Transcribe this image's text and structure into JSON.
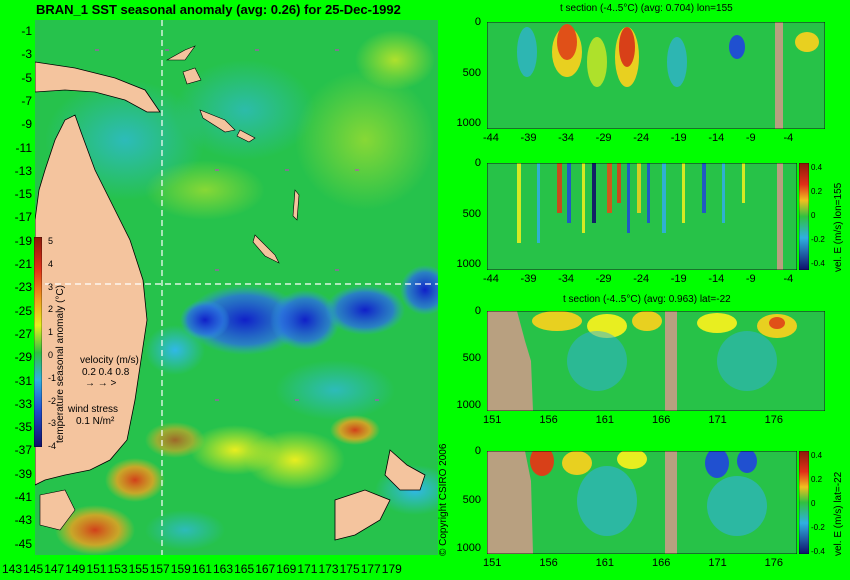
{
  "main_title": "BRAN_1 SST seasonal anomaly (avg: 0.26) for 25-Dec-1992",
  "map": {
    "lat_ticks": [
      "-1",
      "-3",
      "-5",
      "-7",
      "-9",
      "-11",
      "-13",
      "-15",
      "-17",
      "-19",
      "-21",
      "-23",
      "-25",
      "-27",
      "-29",
      "-31",
      "-33",
      "-35",
      "-37",
      "-39",
      "-41",
      "-43",
      "-45"
    ],
    "lon_ticks": [
      "143",
      "145",
      "147",
      "149",
      "151",
      "153",
      "155",
      "157",
      "159",
      "161",
      "163",
      "165",
      "167",
      "169",
      "171",
      "173",
      "175",
      "177",
      "179"
    ],
    "colorbar_ticks": [
      "5",
      "4",
      "3",
      "2",
      "1",
      "0",
      "-1",
      "-2",
      "-3",
      "-4"
    ],
    "colorbar_label": "temperature seasonal anomaly (°C)",
    "velocity_legend_title": "velocity (m/s)",
    "velocity_legend_values": "0.2 0.4 0.8",
    "wind_legend_title": "wind stress",
    "wind_legend_value": "0.1 N/m²",
    "copyright": "© Copyright CSIRO 2006",
    "colors": {
      "land": "#f4c49e",
      "ocean_base": "#22c84a",
      "crosshair": "#ffffff"
    }
  },
  "panels": [
    {
      "title": "t section (-4..5°C) (avg: 0.704) lon=155",
      "x_ticks": [
        "-44",
        "-39",
        "-34",
        "-29",
        "-24",
        "-19",
        "-14",
        "-9",
        "-4"
      ],
      "y_ticks": [
        "0",
        "500",
        "1000"
      ]
    },
    {
      "title": "",
      "x_ticks": [
        "-44",
        "-39",
        "-34",
        "-29",
        "-24",
        "-19",
        "-14",
        "-9",
        "-4"
      ],
      "y_ticks": [
        "0",
        "500",
        "1000"
      ],
      "side_label": "vel. E (m/s) lon=155",
      "cbar_ticks": [
        "0.4",
        "0.2",
        "0",
        "-0.2",
        "-0.4"
      ]
    },
    {
      "title": "t section (-4..5°C) (avg: 0.963) lat=-22",
      "x_ticks": [
        "151",
        "156",
        "161",
        "166",
        "171",
        "176"
      ],
      "y_ticks": [
        "0",
        "500",
        "1000"
      ]
    },
    {
      "title": "",
      "x_ticks": [
        "151",
        "156",
        "161",
        "166",
        "171",
        "176"
      ],
      "y_ticks": [
        "0",
        "500",
        "1000"
      ],
      "side_label": "vel. E (m/s) lat=-22",
      "cbar_ticks": [
        "0.4",
        "0.2",
        "0",
        "-0.2",
        "-0.4"
      ]
    }
  ]
}
